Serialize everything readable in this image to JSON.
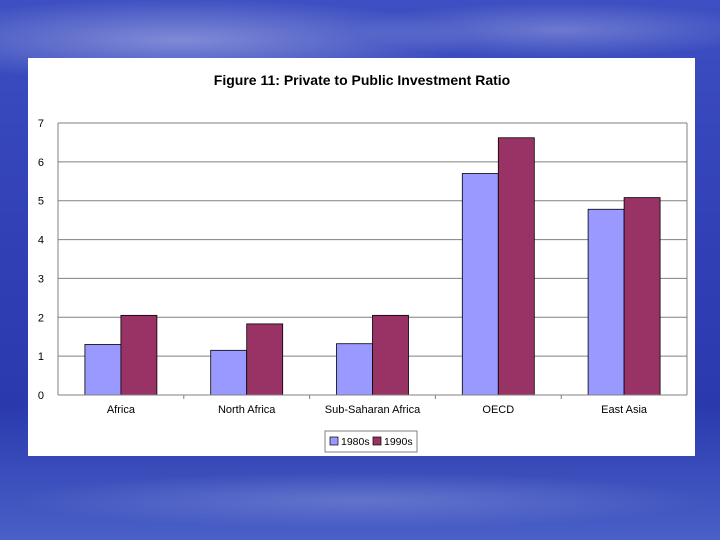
{
  "chart_data": {
    "type": "bar",
    "title": "Figure 11: Private to Public Investment Ratio",
    "xlabel": "",
    "ylabel": "",
    "categories": [
      "Africa",
      "North Africa",
      "Sub-Saharan Africa",
      "OECD",
      "East Asia"
    ],
    "series": [
      {
        "name": "1980s",
        "color": "#9999ff",
        "values": [
          1.3,
          1.15,
          1.32,
          5.7,
          4.78
        ]
      },
      {
        "name": "1990s",
        "color": "#993366",
        "values": [
          2.05,
          1.83,
          2.05,
          6.62,
          5.08
        ]
      }
    ],
    "ylim": [
      0,
      7
    ],
    "yticks": [
      0,
      1,
      2,
      3,
      4,
      5,
      6,
      7
    ],
    "grid": true,
    "legend": "bottom"
  }
}
